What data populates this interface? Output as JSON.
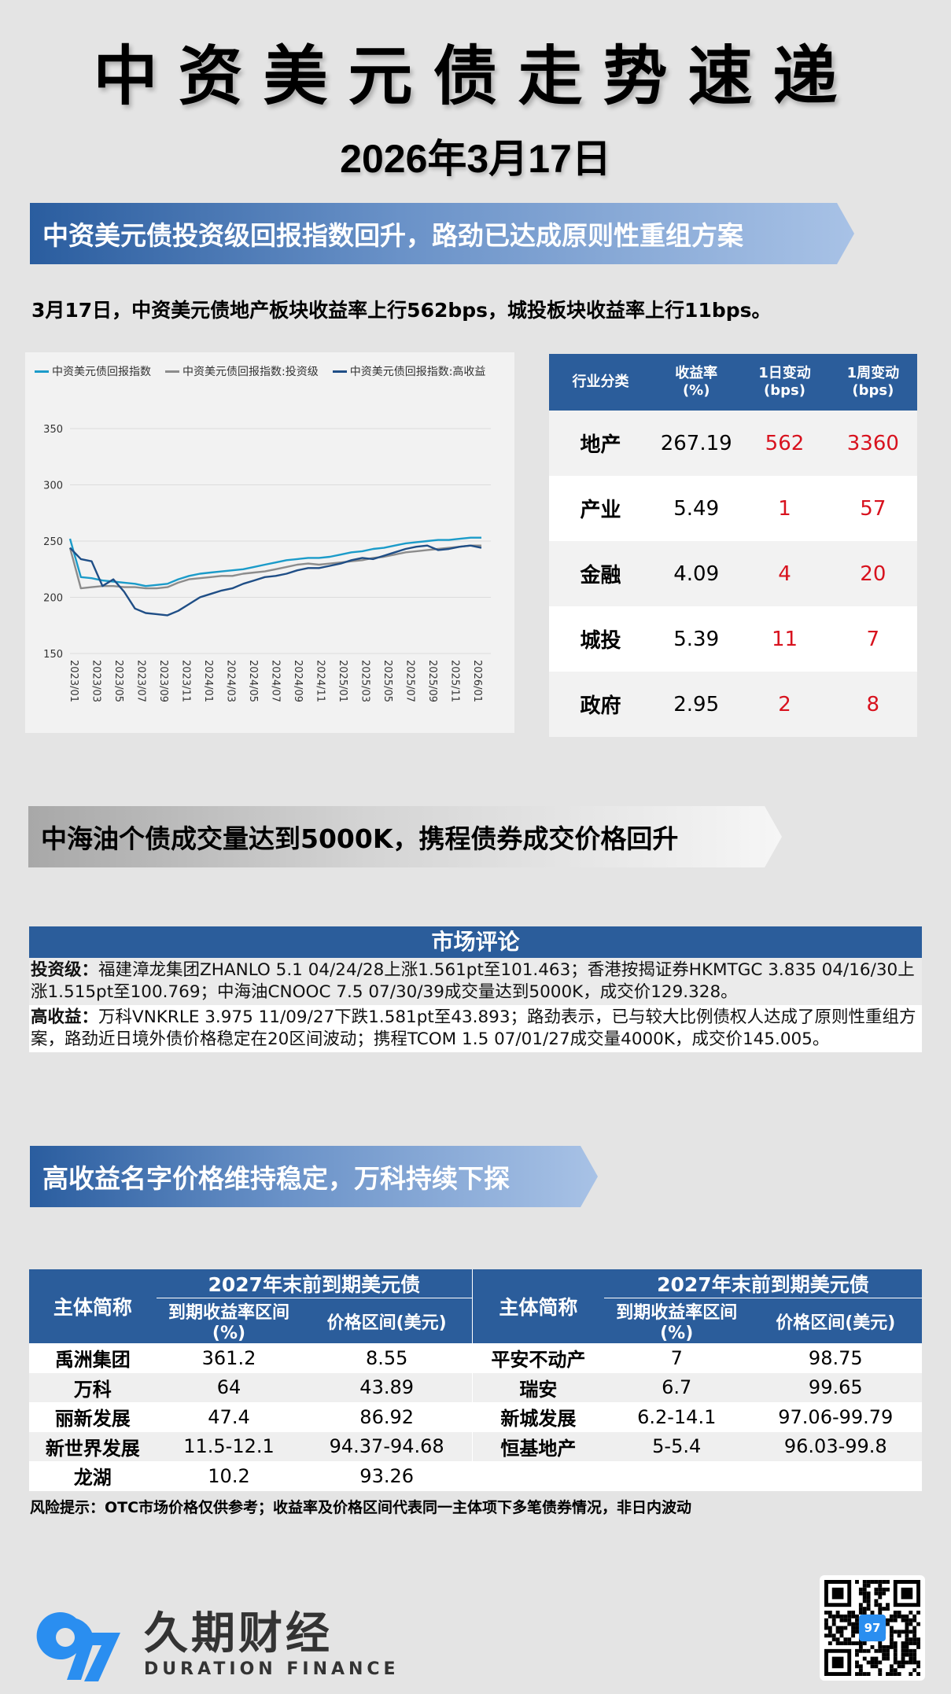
{
  "header": {
    "title": "中资美元债走势速递",
    "date": "2026年3月17日"
  },
  "section1": {
    "banner": "中资美元债投资级回报指数回升，路劲已达成原则性重组方案",
    "summary": "3月17日，中资美元债地产板块收益率上行562bps，城投板块收益率上行11bps。"
  },
  "chart_data": {
    "type": "line",
    "title": "",
    "xlabel": "",
    "ylabel": "",
    "ylim": [
      150,
      350
    ],
    "yticks": [
      150,
      200,
      250,
      300,
      350
    ],
    "grid": true,
    "legend_position": "top",
    "x_tick_labels": [
      "2023/01",
      "2023/03",
      "2023/05",
      "2023/07",
      "2023/09",
      "2023/11",
      "2024/01",
      "2024/03",
      "2024/05",
      "2024/07",
      "2024/09",
      "2024/11",
      "2025/01",
      "2025/03",
      "2025/05",
      "2025/07",
      "2025/09",
      "2025/11",
      "2026/01"
    ],
    "x": [
      "2023/01",
      "2023/02",
      "2023/03",
      "2023/04",
      "2023/05",
      "2023/06",
      "2023/07",
      "2023/08",
      "2023/09",
      "2023/10",
      "2023/11",
      "2023/12",
      "2024/01",
      "2024/02",
      "2024/03",
      "2024/04",
      "2024/05",
      "2024/06",
      "2024/07",
      "2024/08",
      "2024/09",
      "2024/10",
      "2024/11",
      "2024/12",
      "2025/01",
      "2025/02",
      "2025/03",
      "2025/04",
      "2025/05",
      "2025/06",
      "2025/07",
      "2025/08",
      "2025/09",
      "2025/10",
      "2025/11",
      "2025/12",
      "2026/01",
      "2026/02",
      "2026/03"
    ],
    "series": [
      {
        "name": "中资美元债回报指数",
        "color": "#1b9bc9",
        "values": [
          252,
          218,
          217,
          215,
          214,
          213,
          212,
          210,
          211,
          212,
          216,
          219,
          221,
          222,
          223,
          224,
          225,
          227,
          229,
          231,
          233,
          234,
          235,
          235,
          236,
          238,
          240,
          241,
          243,
          244,
          246,
          248,
          249,
          250,
          251,
          251,
          252,
          253,
          253
        ]
      },
      {
        "name": "中资美元债回报指数:投资级",
        "color": "#8c8c8c",
        "values": [
          244,
          208,
          209,
          210,
          210,
          209,
          209,
          208,
          208,
          209,
          213,
          216,
          217,
          218,
          219,
          219,
          221,
          222,
          223,
          225,
          227,
          229,
          230,
          229,
          230,
          231,
          232,
          233,
          235,
          236,
          238,
          240,
          241,
          242,
          243,
          244,
          245,
          246,
          246
        ]
      },
      {
        "name": "中资美元债回报指数:高收益",
        "color": "#1f4e86",
        "values": [
          244,
          234,
          232,
          210,
          216,
          205,
          190,
          186,
          185,
          184,
          188,
          194,
          200,
          203,
          206,
          208,
          212,
          215,
          218,
          219,
          221,
          224,
          226,
          226,
          228,
          230,
          233,
          235,
          234,
          237,
          240,
          243,
          245,
          246,
          242,
          243,
          245,
          246,
          244
        ]
      }
    ]
  },
  "sector_table": {
    "headers": [
      "行业分类",
      "收益率\n(%)",
      "1日变动\n(bps)",
      "1周变动\n(bps)"
    ],
    "header_lines": [
      [
        "行业分类"
      ],
      [
        "收益率",
        "(%)"
      ],
      [
        "1日变动",
        "(bps)"
      ],
      [
        "1周变动",
        "(bps)"
      ]
    ],
    "rows": [
      {
        "sector": "地产",
        "yield": "267.19",
        "d1": "562",
        "w1": "3360"
      },
      {
        "sector": "产业",
        "yield": "5.49",
        "d1": "1",
        "w1": "57"
      },
      {
        "sector": "金融",
        "yield": "4.09",
        "d1": "4",
        "w1": "20"
      },
      {
        "sector": "城投",
        "yield": "5.39",
        "d1": "11",
        "w1": "7"
      },
      {
        "sector": "政府",
        "yield": "2.95",
        "d1": "2",
        "w1": "8"
      }
    ]
  },
  "section2": {
    "banner": "中海油个债成交量达到5000K，携程债券成交价格回升"
  },
  "market_comment": {
    "title": "市场评论",
    "ig_label": "投资级：",
    "ig_text": "福建漳龙集团ZHANLO 5.1 04/24/28上涨1.561pt至101.463；香港按揭证券HKMTGC 3.835 04/16/30上涨1.515pt至100.769；中海油CNOOC 7.5 07/30/39成交量达到5000K，成交价129.328。",
    "hy_label": "高收益：",
    "hy_text": "万科VNKRLE 3.975 11/09/27下跌1.581pt至43.893；路劲表示，已与较大比例债权人达成了原则性重组方案，路劲近日境外债价格稳定在20区间波动；携程TCOM 1.5 07/01/27成交量4000K，成交价145.005。"
  },
  "section3": {
    "banner": "高收益名字价格维持稳定，万科持续下探"
  },
  "bond_table": {
    "name_header": "主体简称",
    "group_header": "2027年末前到期美元债",
    "yield_header": "到期收益率区间(%)",
    "price_header": "价格区间(美元)",
    "left": [
      {
        "name": "禹洲集团",
        "yield": "361.2",
        "price": "8.55"
      },
      {
        "name": "万科",
        "yield": "64",
        "price": "43.89"
      },
      {
        "name": "丽新发展",
        "yield": "47.4",
        "price": "86.92"
      },
      {
        "name": "新世界发展",
        "yield": "11.5-12.1",
        "price": "94.37-94.68"
      },
      {
        "name": "龙湖",
        "yield": "10.2",
        "price": "93.26"
      }
    ],
    "right": [
      {
        "name": "平安不动产",
        "yield": "7",
        "price": "98.75"
      },
      {
        "name": "瑞安",
        "yield": "6.7",
        "price": "99.65"
      },
      {
        "name": "新城发展",
        "yield": "6.2-14.1",
        "price": "97.06-99.79"
      },
      {
        "name": "恒基地产",
        "yield": "5-5.4",
        "price": "96.03-99.8"
      },
      {
        "name": "",
        "yield": "",
        "price": ""
      }
    ]
  },
  "footer": {
    "risk_note": "风险提示：OTC市场价格仅供参考；收益率及价格区间代表同一主体项下多笔债券情况，非日内波动",
    "logo_cn": "久期财经",
    "logo_en": "DURATION FINANCE",
    "logo_mark": "97"
  },
  "colors": {
    "header_blue": "#2b5d9b",
    "positive_red": "#d8121e",
    "logo_blue": "#2a8ef0"
  }
}
